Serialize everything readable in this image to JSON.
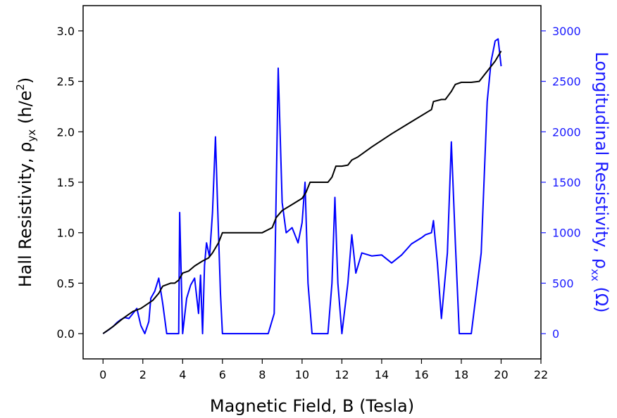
{
  "chart_data": {
    "type": "line",
    "title": "",
    "xlabel": "Magnetic Field, B (Tesla)",
    "ylabel_left": {
      "text": "Hall Resistivity, ρ",
      "sub": "yx",
      "unit_pre": " (h/e",
      "sup": "2",
      "unit_post": ")"
    },
    "ylabel_right": {
      "text": "Longitudinal Resistivity, ρ",
      "sub": "xx",
      "unit": " (Ω)"
    },
    "xlim": [
      -1,
      22
    ],
    "ylim_left": [
      -0.25,
      3.25
    ],
    "ylim_right": [
      -250,
      3250
    ],
    "xticks": [
      "0",
      "2",
      "4",
      "6",
      "8",
      "10",
      "12",
      "14",
      "16",
      "18",
      "20",
      "22"
    ],
    "yticks_left": [
      "0.0",
      "0.5",
      "1.0",
      "1.5",
      "2.0",
      "2.5",
      "3.0"
    ],
    "yticks_right": [
      "0",
      "500",
      "1000",
      "1500",
      "2000",
      "2500",
      "3000"
    ],
    "colors": {
      "hall": "#000000",
      "longitudinal": "#0000ff",
      "right_axis": "#1a1aff"
    },
    "series": [
      {
        "axis": "left",
        "x": [
          0,
          0.5,
          1.0,
          1.5,
          1.9,
          2.5,
          2.8,
          3.0,
          3.4,
          3.6,
          3.8,
          4.0,
          4.3,
          4.6,
          5.0,
          5.3,
          5.5,
          5.8,
          6.0,
          7.0,
          8.0,
          8.5,
          8.7,
          9.0,
          9.5,
          10.0,
          10.2,
          10.4,
          10.8,
          11.3,
          11.5,
          11.7,
          12.0,
          12.3,
          12.5,
          12.8,
          13.5,
          14.5,
          15.5,
          16.5,
          16.6,
          17.0,
          17.2,
          17.5,
          17.7,
          18.0,
          18.5,
          18.9,
          19.3,
          19.7,
          20.0
        ],
        "values": [
          0,
          0.07,
          0.15,
          0.22,
          0.25,
          0.33,
          0.4,
          0.47,
          0.5,
          0.5,
          0.53,
          0.6,
          0.62,
          0.67,
          0.72,
          0.75,
          0.8,
          0.9,
          1.0,
          1.0,
          1.0,
          1.05,
          1.15,
          1.22,
          1.28,
          1.34,
          1.4,
          1.5,
          1.5,
          1.5,
          1.55,
          1.66,
          1.66,
          1.67,
          1.72,
          1.75,
          1.85,
          1.98,
          2.1,
          2.22,
          2.3,
          2.32,
          2.32,
          2.4,
          2.47,
          2.49,
          2.49,
          2.5,
          2.6,
          2.7,
          2.8
        ]
      },
      {
        "axis": "right",
        "x": [
          0,
          0.3,
          0.5,
          0.7,
          0.9,
          1.1,
          1.3,
          1.5,
          1.7,
          1.9,
          2.1,
          2.3,
          2.4,
          2.6,
          2.8,
          3.0,
          3.2,
          3.8,
          3.85,
          4.0,
          4.2,
          4.4,
          4.6,
          4.8,
          4.9,
          5.0,
          5.1,
          5.2,
          5.35,
          5.5,
          5.65,
          5.75,
          5.9,
          6.0,
          8.3,
          8.6,
          8.8,
          9.0,
          9.2,
          9.5,
          9.8,
          10.0,
          10.15,
          10.3,
          10.5,
          11.3,
          11.5,
          11.65,
          11.8,
          12.0,
          12.3,
          12.5,
          12.7,
          13.0,
          13.5,
          14.0,
          14.5,
          15.0,
          15.5,
          16.0,
          16.2,
          16.5,
          16.6,
          16.8,
          17.0,
          17.3,
          17.5,
          17.7,
          17.9,
          18.5,
          19.0,
          19.3,
          19.5,
          19.7,
          19.85,
          20.0
        ],
        "values": [
          0,
          40,
          70,
          110,
          140,
          160,
          150,
          200,
          250,
          80,
          0,
          120,
          350,
          420,
          550,
          300,
          0,
          0,
          1200,
          0,
          350,
          480,
          550,
          200,
          580,
          0,
          680,
          900,
          760,
          1200,
          1950,
          1300,
          400,
          0,
          0,
          200,
          2630,
          1300,
          1000,
          1050,
          900,
          1100,
          1500,
          500,
          0,
          0,
          500,
          1350,
          500,
          0,
          500,
          980,
          600,
          800,
          770,
          780,
          700,
          780,
          890,
          950,
          980,
          1000,
          1120,
          700,
          150,
          800,
          1900,
          900,
          0,
          0,
          800,
          2300,
          2700,
          2900,
          2920,
          2650
        ]
      }
    ]
  }
}
